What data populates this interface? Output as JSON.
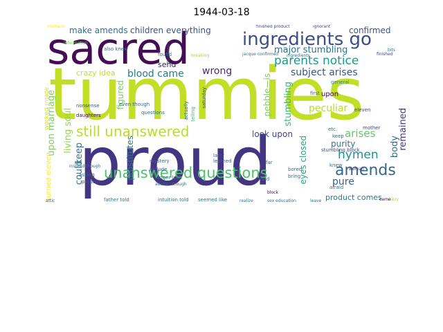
{
  "title": "1944-03-18",
  "words": {
    "tummies": "tummies",
    "proud": "proud",
    "sacred": "sacred",
    "ingredients_go": "ingredients go",
    "parents_notice": "parents notice",
    "unanswered_questions": "unanswered questions",
    "still_unanswered": "still unanswered",
    "amends": "amends",
    "hymen": "hymen",
    "make_amends": "make amends",
    "children_everything": "children everything",
    "confirmed": "confirmed",
    "major_stumbling": "major stumbling",
    "subject_arises": "subject arises",
    "blood_came": "blood came",
    "wrong": "wrong",
    "crazy_idea": "crazy idea",
    "send": "send",
    "look_upon": "look upon",
    "arises": "arises",
    "purity": "purity",
    "pure": "pure",
    "product_comes": "product comes",
    "peculiar": "peculiar",
    "upon_marriage": "upon marriage",
    "living_soul": "living soul",
    "could": "could",
    "keep": "keep",
    "figured": "figured",
    "prostitutes": "prostitutes",
    "body": "body",
    "remained": "remained",
    "eyes_closed": "eyes closed",
    "stumbling": "stumbling",
    "pebble_is": "pebble—is",
    "turned_eleven": "turned eleven",
    "worked_inside": "worked inside",
    "mothers": "mothers",
    "finished_product": "finished product",
    "ignorant": "ignorant",
    "also_knew": "also knew",
    "intuition": "intuition",
    "found": "found",
    "breaking": "breaking",
    "general": "general",
    "first": "first",
    "later": "later",
    "learned": "learned",
    "mystery": "mystery",
    "include": "include",
    "longer_look": "longer look",
    "father_told": "father told",
    "intuition_told": "intuition told",
    "seemed_like": "seemed like",
    "realize": "realize",
    "sex_education": "sex education",
    "leave": "leave",
    "attic": "attic",
    "bored": "bored",
    "bring": "bring",
    "find": "find",
    "nonsense": "nonsense",
    "daughters": "daughters",
    "even_though": "even though",
    "questions": "questions",
    "actually": "actually",
    "telling": "telling",
    "eleven": "eleven",
    "mother": "mother",
    "afraid": "afraid",
    "woman": "woman",
    "etc": "etc.",
    "stumbling_block": "stumbling block",
    "instead_though": "instead though",
    "asking": "asking",
    "product": "product",
    "adults_though": "adults—though",
    "information": "information",
    "upon": "upon",
    "finished": "finished",
    "jacque_confirmed": "jacque confirmed",
    "ingredients": "ingredients",
    "bits": "bits",
    "far": "far",
    "knew": "knew",
    "keep_small": "keep",
    "came": "came",
    "crazy": "crazy",
    "block": "block",
    "saturday": "saturday"
  }
}
